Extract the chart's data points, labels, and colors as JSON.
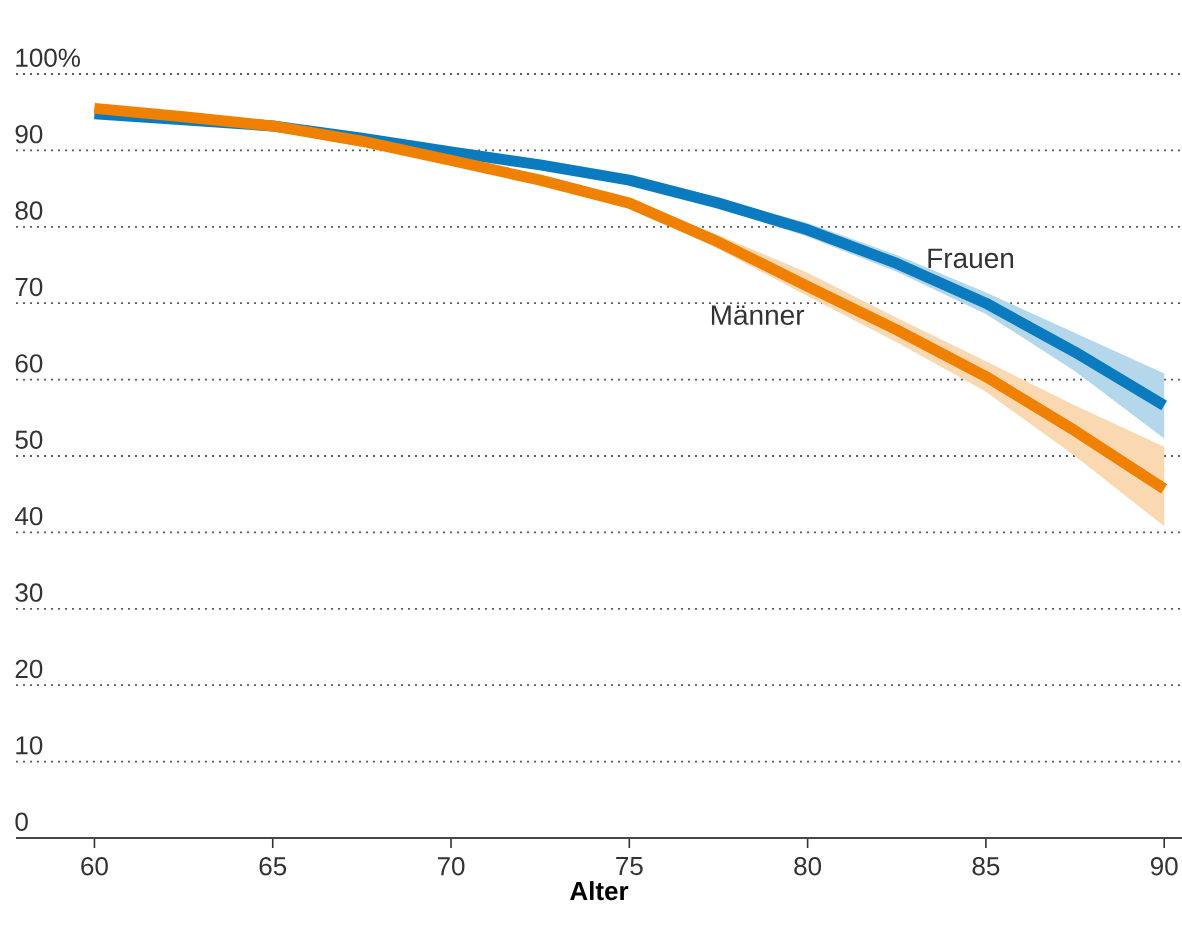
{
  "chart_data": {
    "type": "line",
    "xlabel": "Alter",
    "x": [
      60,
      62.5,
      65,
      67.5,
      70,
      72.5,
      75,
      77.5,
      80,
      82.5,
      85,
      87.5,
      90
    ],
    "series": [
      {
        "name": "Frauen",
        "color": "#0a7bbf",
        "values": [
          94.8,
          94.0,
          93.2,
          91.6,
          89.8,
          88.1,
          86.1,
          83.1,
          79.6,
          75.2,
          70.0,
          63.6,
          56.6
        ],
        "lower": [
          94.4,
          93.6,
          92.8,
          91.2,
          89.4,
          87.7,
          85.7,
          82.5,
          78.7,
          74.1,
          68.6,
          61.1,
          52.3
        ],
        "upper": [
          95.2,
          94.4,
          93.6,
          92.0,
          90.2,
          88.5,
          86.5,
          83.7,
          80.5,
          76.3,
          71.4,
          66.1,
          60.8
        ]
      },
      {
        "name": "Männer",
        "color": "#f08000",
        "values": [
          95.5,
          94.4,
          93.2,
          91.2,
          88.7,
          86.1,
          83.1,
          78.0,
          72.2,
          66.5,
          60.4,
          53.3,
          45.7
        ],
        "lower": [
          95.0,
          93.9,
          92.7,
          90.7,
          88.2,
          85.6,
          82.6,
          77.1,
          70.9,
          64.9,
          58.4,
          50.0,
          40.8
        ],
        "upper": [
          96.0,
          94.9,
          93.7,
          91.7,
          89.2,
          86.6,
          83.6,
          78.9,
          74.0,
          68.1,
          62.4,
          56.6,
          51.2
        ]
      }
    ],
    "xlim": [
      57.8,
      90.5
    ],
    "ylim": [
      0,
      100
    ],
    "xticks": [
      60,
      65,
      70,
      75,
      80,
      85,
      90
    ],
    "yticks": [
      0,
      10,
      20,
      30,
      40,
      50,
      60,
      70,
      80,
      90,
      {
        "value": 100,
        "label": "100%"
      }
    ],
    "grid": "y",
    "legend": false,
    "line_style": "solid",
    "marker": "none"
  }
}
